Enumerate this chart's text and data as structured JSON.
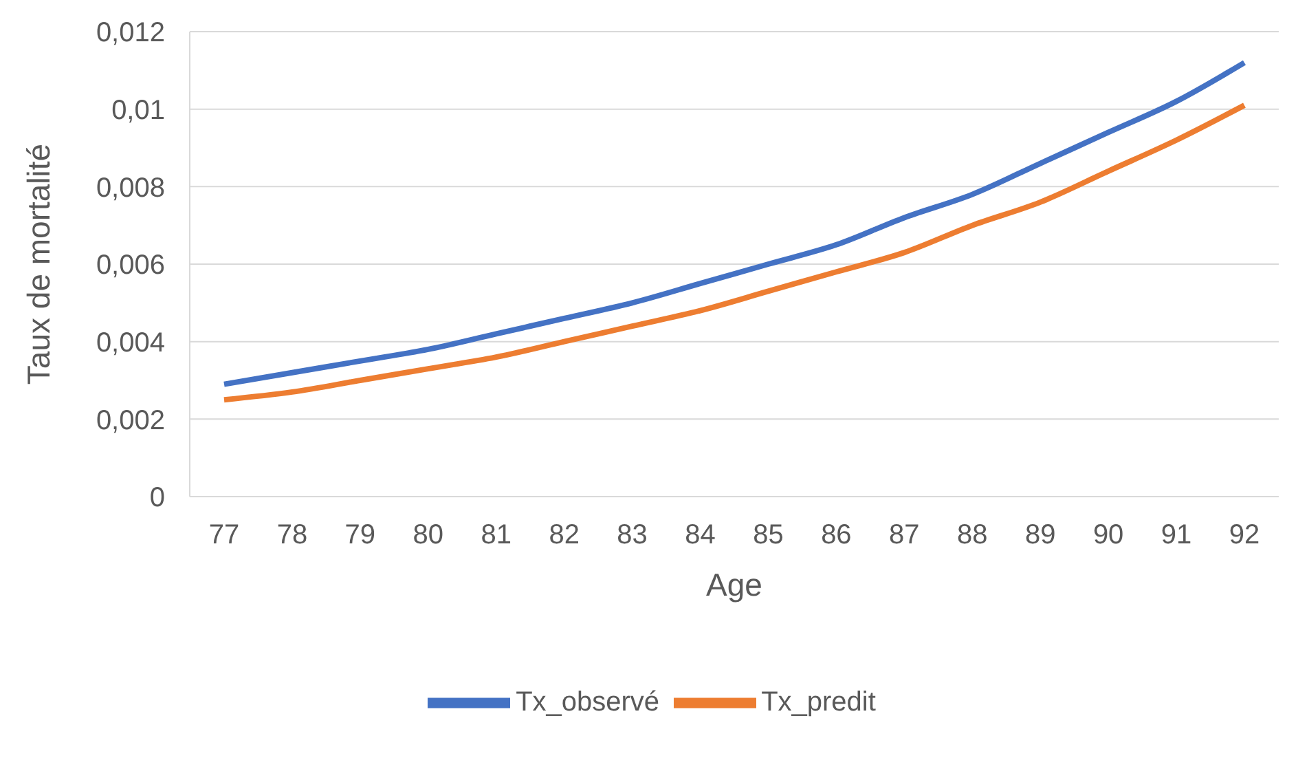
{
  "chart_data": {
    "type": "line",
    "xlabel": "Age",
    "ylabel": "Taux de mortalité",
    "categories": [
      "77",
      "78",
      "79",
      "80",
      "81",
      "82",
      "83",
      "84",
      "85",
      "86",
      "87",
      "88",
      "89",
      "90",
      "91",
      "92"
    ],
    "series": [
      {
        "name": "Tx_observé",
        "color": "#4472c4",
        "values": [
          0.0029,
          0.0032,
          0.0035,
          0.0038,
          0.0042,
          0.0046,
          0.005,
          0.0055,
          0.006,
          0.0065,
          0.0072,
          0.0078,
          0.0086,
          0.0094,
          0.0102,
          0.0112
        ]
      },
      {
        "name": "Tx_predit",
        "color": "#ed7d31",
        "values": [
          0.0025,
          0.0027,
          0.003,
          0.0033,
          0.0036,
          0.004,
          0.0044,
          0.0048,
          0.0053,
          0.0058,
          0.0063,
          0.007,
          0.0076,
          0.0084,
          0.0092,
          0.0101
        ]
      }
    ],
    "ylim": [
      0,
      0.012
    ],
    "yticks": [
      {
        "value": 0,
        "label": "0"
      },
      {
        "value": 0.002,
        "label": "0,002"
      },
      {
        "value": 0.004,
        "label": "0,004"
      },
      {
        "value": 0.006,
        "label": "0,006"
      },
      {
        "value": 0.008,
        "label": "0,008"
      },
      {
        "value": 0.01,
        "label": "0,01"
      },
      {
        "value": 0.012,
        "label": "0,012"
      }
    ],
    "grid": "y",
    "legend": "bottom",
    "marker": "none",
    "line_style": "solid"
  }
}
